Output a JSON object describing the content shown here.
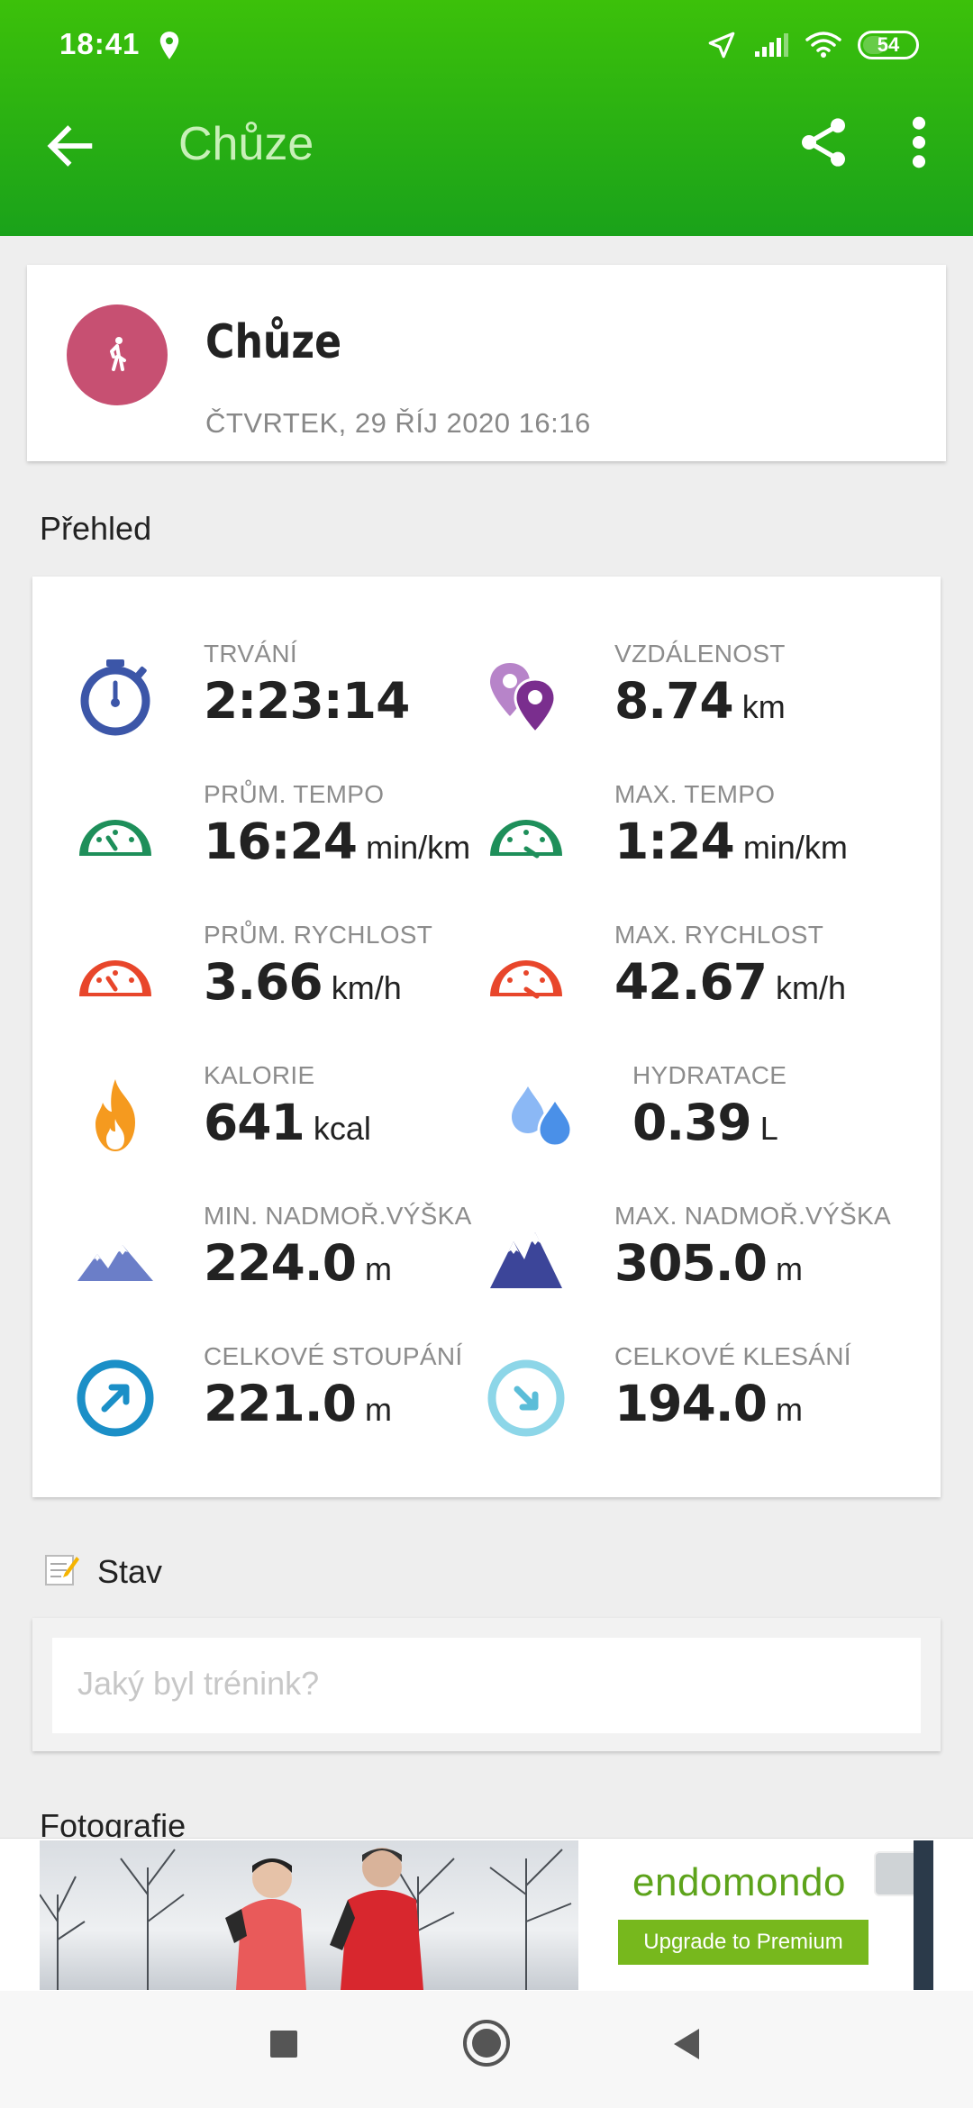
{
  "status_bar": {
    "time": "18:41",
    "battery": "54"
  },
  "app_bar": {
    "title": "Chůze"
  },
  "activity": {
    "name": "Chůze",
    "date": "ČTVRTEK, 29 ŘÍJ 2020 16:16",
    "color": "#c75072"
  },
  "overview": {
    "title": "Přehled",
    "stats": [
      {
        "label": "TRVÁNÍ",
        "value": "2:23:14",
        "unit": "",
        "icon": "stopwatch-icon"
      },
      {
        "label": "VZDÁLENOST",
        "value": "8.74",
        "unit": "km",
        "icon": "location-pins-icon"
      },
      {
        "label": "PRŮM. TEMPO",
        "value": "16:24",
        "unit": "min/km",
        "icon": "pace-gauge-icon"
      },
      {
        "label": "MAX. TEMPO",
        "value": "1:24",
        "unit": "min/km",
        "icon": "max-pace-gauge-icon"
      },
      {
        "label": "PRŮM. RYCHLOST",
        "value": "3.66",
        "unit": "km/h",
        "icon": "speed-gauge-icon"
      },
      {
        "label": "MAX. RYCHLOST",
        "value": "42.67",
        "unit": "km/h",
        "icon": "max-speed-gauge-icon"
      },
      {
        "label": "KALORIE",
        "value": "641",
        "unit": "kcal",
        "icon": "flame-icon"
      },
      {
        "label": "HYDRATACE",
        "value": "0.39",
        "unit": "L",
        "icon": "water-drops-icon"
      },
      {
        "label": "MIN. NADMOŘ.VÝŠKA",
        "value": "224.0",
        "unit": "m",
        "icon": "min-altitude-mountains-icon"
      },
      {
        "label": "MAX. NADMOŘ.VÝŠKA",
        "value": "305.0",
        "unit": "m",
        "icon": "max-altitude-mountains-icon"
      },
      {
        "label": "CELKOVÉ STOUPÁNÍ",
        "value": "221.0",
        "unit": "m",
        "icon": "ascent-arrow-icon"
      },
      {
        "label": "CELKOVÉ KLESÁNÍ",
        "value": "194.0",
        "unit": "m",
        "icon": "descent-arrow-icon"
      }
    ]
  },
  "status_section": {
    "title": "Stav",
    "placeholder": "Jaký byl trénink?"
  },
  "photos_section": {
    "title": "Fotografie"
  },
  "ad": {
    "brand": "endomondo",
    "cta": "Upgrade to Premium"
  },
  "colors": {
    "header_green": "#1aa21a",
    "pace_green": "#1e8f5a",
    "speed_red": "#e8462b",
    "flame_orange": "#f59a1f",
    "water_blue": "#4a90e8",
    "mountain_indigo": "#3c4599"
  }
}
